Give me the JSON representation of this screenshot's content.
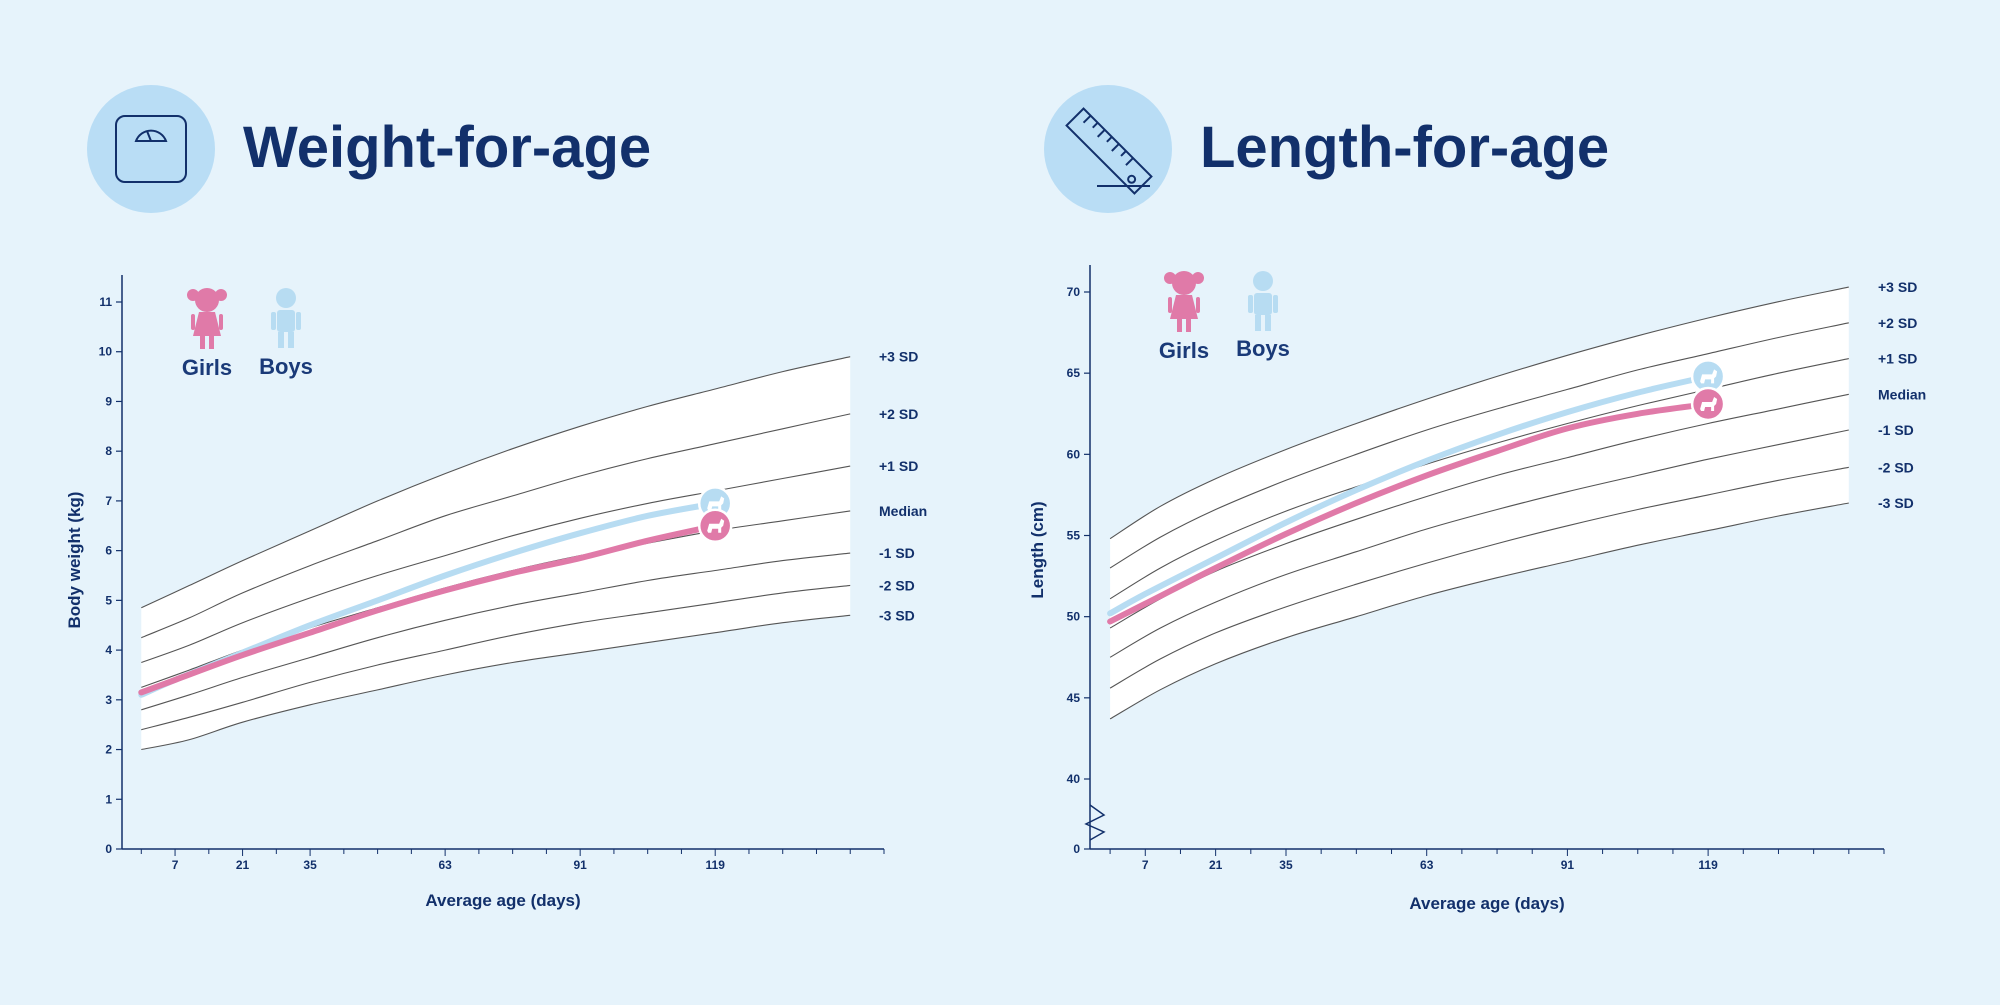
{
  "colors": {
    "background": "#e6f3fb",
    "navy": "#12306b",
    "icon_circle": "#b9ddf5",
    "girls": "#e07aa8",
    "boys": "#b7dcf2",
    "band_fill": "#ffffff",
    "sd_line": "#555555"
  },
  "legend": {
    "girls": "Girls",
    "boys": "Boys"
  },
  "chart_data": [
    {
      "type": "line",
      "title": "Weight-for-age",
      "icon": "scale-icon",
      "xlabel": "Average age (days)",
      "ylabel": "Body weight (kg)",
      "xlim": [
        -4,
        154
      ],
      "ylim": [
        0,
        11.5
      ],
      "x_ticks": [
        7,
        21,
        35,
        63,
        91,
        119
      ],
      "y_ticks": [
        0,
        1,
        2,
        3,
        4,
        5,
        6,
        7,
        8,
        9,
        10,
        11
      ],
      "grid": false,
      "legend_position": "top-left",
      "axis_break": false,
      "sd_x_range": [
        0,
        147
      ],
      "sd_curves": [
        {
          "label": "+3 SD",
          "x": [
            0,
            10,
            21,
            35,
            49,
            63,
            77,
            91,
            105,
            119,
            133,
            147
          ],
          "y": [
            4.85,
            5.3,
            5.8,
            6.4,
            7.0,
            7.55,
            8.05,
            8.5,
            8.9,
            9.25,
            9.6,
            9.9
          ]
        },
        {
          "label": "+2 SD",
          "x": [
            0,
            10,
            21,
            35,
            49,
            63,
            77,
            91,
            105,
            119,
            133,
            147
          ],
          "y": [
            4.25,
            4.65,
            5.15,
            5.7,
            6.2,
            6.7,
            7.1,
            7.5,
            7.85,
            8.15,
            8.45,
            8.75
          ]
        },
        {
          "label": "+1 SD",
          "x": [
            0,
            10,
            21,
            35,
            49,
            63,
            77,
            91,
            105,
            119,
            133,
            147
          ],
          "y": [
            3.75,
            4.1,
            4.55,
            5.05,
            5.5,
            5.9,
            6.3,
            6.65,
            6.95,
            7.2,
            7.45,
            7.7
          ]
        },
        {
          "label": "Median",
          "x": [
            0,
            10,
            21,
            35,
            49,
            63,
            77,
            91,
            105,
            119,
            133,
            147
          ],
          "y": [
            3.25,
            3.6,
            4.0,
            4.45,
            4.85,
            5.25,
            5.6,
            5.9,
            6.15,
            6.4,
            6.6,
            6.8
          ]
        },
        {
          "label": "-1 SD",
          "x": [
            0,
            10,
            21,
            35,
            49,
            63,
            77,
            91,
            105,
            119,
            133,
            147
          ],
          "y": [
            2.8,
            3.1,
            3.45,
            3.85,
            4.25,
            4.6,
            4.9,
            5.15,
            5.4,
            5.6,
            5.8,
            5.95
          ]
        },
        {
          "label": "-2 SD",
          "x": [
            0,
            10,
            21,
            35,
            49,
            63,
            77,
            91,
            105,
            119,
            133,
            147
          ],
          "y": [
            2.4,
            2.65,
            2.95,
            3.35,
            3.7,
            4.0,
            4.3,
            4.55,
            4.75,
            4.95,
            5.15,
            5.3
          ]
        },
        {
          "label": "-3 SD",
          "x": [
            0,
            10,
            21,
            35,
            49,
            63,
            77,
            91,
            105,
            119,
            133,
            147
          ],
          "y": [
            2.0,
            2.2,
            2.55,
            2.9,
            3.2,
            3.5,
            3.75,
            3.95,
            4.15,
            4.35,
            4.55,
            4.7
          ]
        }
      ],
      "series": [
        {
          "name": "Boys",
          "color": "#b7dcf2",
          "x": [
            0,
            7,
            21,
            35,
            49,
            63,
            77,
            91,
            105,
            119
          ],
          "y": [
            3.1,
            3.4,
            3.95,
            4.5,
            5.0,
            5.5,
            5.95,
            6.35,
            6.7,
            6.95
          ]
        },
        {
          "name": "Girls",
          "color": "#e07aa8",
          "x": [
            0,
            7,
            21,
            35,
            49,
            63,
            77,
            91,
            105,
            119
          ],
          "y": [
            3.15,
            3.4,
            3.9,
            4.35,
            4.8,
            5.2,
            5.55,
            5.85,
            6.2,
            6.5
          ]
        }
      ]
    },
    {
      "type": "line",
      "title": "Length-for-age",
      "icon": "ruler-icon",
      "xlabel": "Average age (days)",
      "ylabel": "Length (cm)",
      "xlim": [
        -4,
        154
      ],
      "ylim": [
        0,
        72
      ],
      "x_ticks": [
        7,
        21,
        35,
        63,
        91,
        119
      ],
      "y_ticks": [
        0,
        40,
        45,
        50,
        55,
        60,
        65,
        70
      ],
      "grid": false,
      "legend_position": "top-left",
      "axis_break": true,
      "sd_x_range": [
        0,
        147
      ],
      "sd_curves": [
        {
          "label": "+3 SD",
          "x": [
            0,
            10,
            21,
            35,
            49,
            63,
            77,
            91,
            105,
            119,
            133,
            147
          ],
          "y": [
            54.8,
            56.8,
            58.5,
            60.3,
            61.9,
            63.4,
            64.8,
            66.1,
            67.3,
            68.4,
            69.4,
            70.3
          ]
        },
        {
          "label": "+2 SD",
          "x": [
            0,
            10,
            21,
            35,
            49,
            63,
            77,
            91,
            105,
            119,
            133,
            147
          ],
          "y": [
            53.0,
            54.9,
            56.6,
            58.4,
            60.0,
            61.5,
            62.8,
            64.0,
            65.2,
            66.2,
            67.2,
            68.1
          ]
        },
        {
          "label": "+1 SD",
          "x": [
            0,
            10,
            21,
            35,
            49,
            63,
            77,
            91,
            105,
            119,
            133,
            147
          ],
          "y": [
            51.1,
            53.0,
            54.7,
            56.5,
            58.0,
            59.4,
            60.7,
            61.9,
            63.0,
            64.0,
            65.0,
            65.9
          ]
        },
        {
          "label": "Median",
          "x": [
            0,
            10,
            21,
            35,
            49,
            63,
            77,
            91,
            105,
            119,
            133,
            147
          ],
          "y": [
            49.3,
            51.1,
            52.8,
            54.5,
            56.0,
            57.4,
            58.7,
            59.8,
            60.9,
            61.9,
            62.8,
            63.7
          ]
        },
        {
          "label": "-1 SD",
          "x": [
            0,
            10,
            21,
            35,
            49,
            63,
            77,
            91,
            105,
            119,
            133,
            147
          ],
          "y": [
            47.5,
            49.3,
            50.9,
            52.6,
            54.0,
            55.4,
            56.6,
            57.7,
            58.7,
            59.7,
            60.6,
            61.5
          ]
        },
        {
          "label": "-2 SD",
          "x": [
            0,
            10,
            21,
            35,
            49,
            63,
            77,
            91,
            105,
            119,
            133,
            147
          ],
          "y": [
            45.6,
            47.4,
            49.0,
            50.6,
            52.0,
            53.3,
            54.5,
            55.6,
            56.6,
            57.5,
            58.4,
            59.2
          ]
        },
        {
          "label": "-3 SD",
          "x": [
            0,
            10,
            21,
            35,
            49,
            63,
            77,
            91,
            105,
            119,
            133,
            147
          ],
          "y": [
            43.7,
            45.5,
            47.1,
            48.7,
            50.0,
            51.3,
            52.4,
            53.4,
            54.4,
            55.3,
            56.2,
            57.0
          ]
        }
      ],
      "series": [
        {
          "name": "Boys",
          "color": "#b7dcf2",
          "x": [
            0,
            7,
            21,
            35,
            49,
            63,
            77,
            91,
            105,
            119
          ],
          "y": [
            50.2,
            51.4,
            53.6,
            55.8,
            57.8,
            59.6,
            61.2,
            62.6,
            63.8,
            64.8
          ]
        },
        {
          "name": "Girls",
          "color": "#e07aa8",
          "x": [
            0,
            7,
            21,
            35,
            49,
            63,
            77,
            91,
            105,
            119
          ],
          "y": [
            49.7,
            50.8,
            53.0,
            55.1,
            57.0,
            58.7,
            60.2,
            61.6,
            62.5,
            63.1
          ]
        }
      ]
    }
  ]
}
